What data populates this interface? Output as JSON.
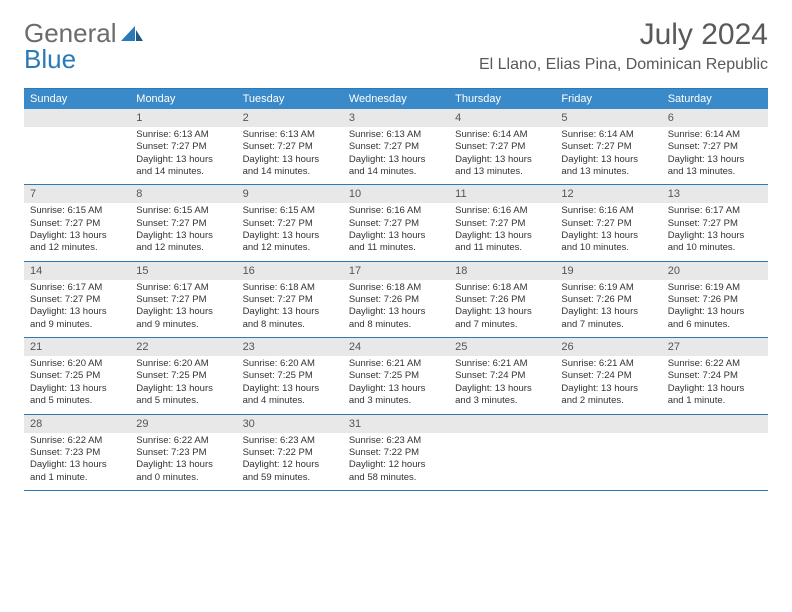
{
  "logo": {
    "word1": "General",
    "word2": "Blue"
  },
  "title": "July 2024",
  "location": "El Llano, Elias Pina, Dominican Republic",
  "colors": {
    "header_bg": "#3a8ac9",
    "border": "#2a7ab8",
    "daynum_bg": "#e8e8e8",
    "text": "#333333",
    "logo_gray": "#6b6b6b",
    "logo_blue": "#2a7ab8"
  },
  "weekdays": [
    "Sunday",
    "Monday",
    "Tuesday",
    "Wednesday",
    "Thursday",
    "Friday",
    "Saturday"
  ],
  "weeks": [
    [
      {
        "n": "",
        "lines": []
      },
      {
        "n": "1",
        "lines": [
          "Sunrise: 6:13 AM",
          "Sunset: 7:27 PM",
          "Daylight: 13 hours",
          "and 14 minutes."
        ]
      },
      {
        "n": "2",
        "lines": [
          "Sunrise: 6:13 AM",
          "Sunset: 7:27 PM",
          "Daylight: 13 hours",
          "and 14 minutes."
        ]
      },
      {
        "n": "3",
        "lines": [
          "Sunrise: 6:13 AM",
          "Sunset: 7:27 PM",
          "Daylight: 13 hours",
          "and 14 minutes."
        ]
      },
      {
        "n": "4",
        "lines": [
          "Sunrise: 6:14 AM",
          "Sunset: 7:27 PM",
          "Daylight: 13 hours",
          "and 13 minutes."
        ]
      },
      {
        "n": "5",
        "lines": [
          "Sunrise: 6:14 AM",
          "Sunset: 7:27 PM",
          "Daylight: 13 hours",
          "and 13 minutes."
        ]
      },
      {
        "n": "6",
        "lines": [
          "Sunrise: 6:14 AM",
          "Sunset: 7:27 PM",
          "Daylight: 13 hours",
          "and 13 minutes."
        ]
      }
    ],
    [
      {
        "n": "7",
        "lines": [
          "Sunrise: 6:15 AM",
          "Sunset: 7:27 PM",
          "Daylight: 13 hours",
          "and 12 minutes."
        ]
      },
      {
        "n": "8",
        "lines": [
          "Sunrise: 6:15 AM",
          "Sunset: 7:27 PM",
          "Daylight: 13 hours",
          "and 12 minutes."
        ]
      },
      {
        "n": "9",
        "lines": [
          "Sunrise: 6:15 AM",
          "Sunset: 7:27 PM",
          "Daylight: 13 hours",
          "and 12 minutes."
        ]
      },
      {
        "n": "10",
        "lines": [
          "Sunrise: 6:16 AM",
          "Sunset: 7:27 PM",
          "Daylight: 13 hours",
          "and 11 minutes."
        ]
      },
      {
        "n": "11",
        "lines": [
          "Sunrise: 6:16 AM",
          "Sunset: 7:27 PM",
          "Daylight: 13 hours",
          "and 11 minutes."
        ]
      },
      {
        "n": "12",
        "lines": [
          "Sunrise: 6:16 AM",
          "Sunset: 7:27 PM",
          "Daylight: 13 hours",
          "and 10 minutes."
        ]
      },
      {
        "n": "13",
        "lines": [
          "Sunrise: 6:17 AM",
          "Sunset: 7:27 PM",
          "Daylight: 13 hours",
          "and 10 minutes."
        ]
      }
    ],
    [
      {
        "n": "14",
        "lines": [
          "Sunrise: 6:17 AM",
          "Sunset: 7:27 PM",
          "Daylight: 13 hours",
          "and 9 minutes."
        ]
      },
      {
        "n": "15",
        "lines": [
          "Sunrise: 6:17 AM",
          "Sunset: 7:27 PM",
          "Daylight: 13 hours",
          "and 9 minutes."
        ]
      },
      {
        "n": "16",
        "lines": [
          "Sunrise: 6:18 AM",
          "Sunset: 7:27 PM",
          "Daylight: 13 hours",
          "and 8 minutes."
        ]
      },
      {
        "n": "17",
        "lines": [
          "Sunrise: 6:18 AM",
          "Sunset: 7:26 PM",
          "Daylight: 13 hours",
          "and 8 minutes."
        ]
      },
      {
        "n": "18",
        "lines": [
          "Sunrise: 6:18 AM",
          "Sunset: 7:26 PM",
          "Daylight: 13 hours",
          "and 7 minutes."
        ]
      },
      {
        "n": "19",
        "lines": [
          "Sunrise: 6:19 AM",
          "Sunset: 7:26 PM",
          "Daylight: 13 hours",
          "and 7 minutes."
        ]
      },
      {
        "n": "20",
        "lines": [
          "Sunrise: 6:19 AM",
          "Sunset: 7:26 PM",
          "Daylight: 13 hours",
          "and 6 minutes."
        ]
      }
    ],
    [
      {
        "n": "21",
        "lines": [
          "Sunrise: 6:20 AM",
          "Sunset: 7:25 PM",
          "Daylight: 13 hours",
          "and 5 minutes."
        ]
      },
      {
        "n": "22",
        "lines": [
          "Sunrise: 6:20 AM",
          "Sunset: 7:25 PM",
          "Daylight: 13 hours",
          "and 5 minutes."
        ]
      },
      {
        "n": "23",
        "lines": [
          "Sunrise: 6:20 AM",
          "Sunset: 7:25 PM",
          "Daylight: 13 hours",
          "and 4 minutes."
        ]
      },
      {
        "n": "24",
        "lines": [
          "Sunrise: 6:21 AM",
          "Sunset: 7:25 PM",
          "Daylight: 13 hours",
          "and 3 minutes."
        ]
      },
      {
        "n": "25",
        "lines": [
          "Sunrise: 6:21 AM",
          "Sunset: 7:24 PM",
          "Daylight: 13 hours",
          "and 3 minutes."
        ]
      },
      {
        "n": "26",
        "lines": [
          "Sunrise: 6:21 AM",
          "Sunset: 7:24 PM",
          "Daylight: 13 hours",
          "and 2 minutes."
        ]
      },
      {
        "n": "27",
        "lines": [
          "Sunrise: 6:22 AM",
          "Sunset: 7:24 PM",
          "Daylight: 13 hours",
          "and 1 minute."
        ]
      }
    ],
    [
      {
        "n": "28",
        "lines": [
          "Sunrise: 6:22 AM",
          "Sunset: 7:23 PM",
          "Daylight: 13 hours",
          "and 1 minute."
        ]
      },
      {
        "n": "29",
        "lines": [
          "Sunrise: 6:22 AM",
          "Sunset: 7:23 PM",
          "Daylight: 13 hours",
          "and 0 minutes."
        ]
      },
      {
        "n": "30",
        "lines": [
          "Sunrise: 6:23 AM",
          "Sunset: 7:22 PM",
          "Daylight: 12 hours",
          "and 59 minutes."
        ]
      },
      {
        "n": "31",
        "lines": [
          "Sunrise: 6:23 AM",
          "Sunset: 7:22 PM",
          "Daylight: 12 hours",
          "and 58 minutes."
        ]
      },
      {
        "n": "",
        "lines": []
      },
      {
        "n": "",
        "lines": []
      },
      {
        "n": "",
        "lines": []
      }
    ]
  ]
}
